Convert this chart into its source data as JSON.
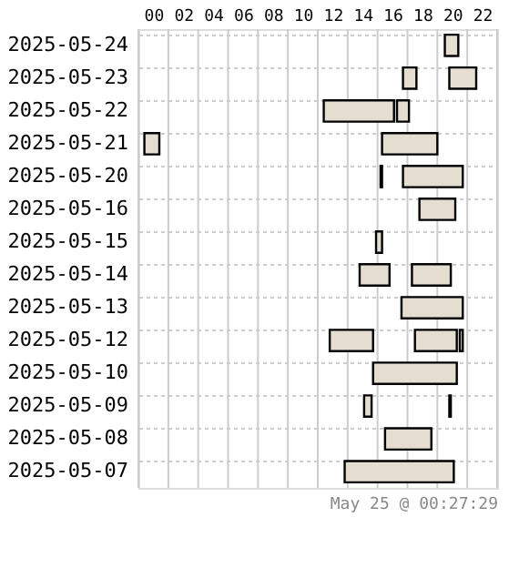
{
  "chart_data": {
    "type": "bar",
    "orientation": "horizontal",
    "categories": [
      "2025-05-24",
      "2025-05-23",
      "2025-05-22",
      "2025-05-21",
      "2025-05-20",
      "2025-05-16",
      "2025-05-15",
      "2025-05-14",
      "2025-05-13",
      "2025-05-12",
      "2025-05-10",
      "2025-05-09",
      "2025-05-08",
      "2025-05-07"
    ],
    "series": [
      {
        "color": "#e4ddd0",
        "base": [
          19.5,
          16.7,
          11.4,
          -0.6,
          15.2,
          17.8,
          14.9,
          13.8,
          16.6,
          11.8,
          14.7,
          14.1,
          15.5,
          12.8
        ],
        "values": [
          0.9,
          0.9,
          4.7,
          1.0,
          0.1,
          2.4,
          0.4,
          2.0,
          4.1,
          2.9,
          5.6,
          0.5,
          3.1,
          7.3
        ]
      },
      {
        "color": "#e4ddd0",
        "base": [
          null,
          19.8,
          16.3,
          15.3,
          16.7,
          null,
          null,
          17.3,
          null,
          17.5,
          null,
          19.8,
          null,
          null
        ],
        "values": [
          null,
          1.8,
          0.8,
          3.7,
          4.0,
          null,
          null,
          2.6,
          null,
          2.8,
          null,
          0.1,
          null,
          null
        ]
      },
      {
        "color": "#e4ddd0",
        "base": [
          null,
          null,
          null,
          null,
          null,
          null,
          null,
          null,
          null,
          20.5,
          null,
          null,
          null,
          null
        ],
        "values": [
          null,
          null,
          null,
          null,
          null,
          null,
          null,
          null,
          null,
          0.2,
          null,
          null,
          null,
          null
        ]
      }
    ],
    "xlim": [
      -1,
      23
    ],
    "xticks": [
      {
        "value": -1,
        "label": null
      },
      {
        "value": 0,
        "label": "00"
      },
      {
        "value": 1,
        "label": null
      },
      {
        "value": 2,
        "label": "02"
      },
      {
        "value": 3,
        "label": null
      },
      {
        "value": 4,
        "label": "04"
      },
      {
        "value": 5,
        "label": null
      },
      {
        "value": 6,
        "label": "06"
      },
      {
        "value": 7,
        "label": null
      },
      {
        "value": 8,
        "label": "08"
      },
      {
        "value": 9,
        "label": null
      },
      {
        "value": 10,
        "label": "10"
      },
      {
        "value": 11,
        "label": null
      },
      {
        "value": 12,
        "label": "12"
      },
      {
        "value": 13,
        "label": null
      },
      {
        "value": 14,
        "label": "14"
      },
      {
        "value": 15,
        "label": null
      },
      {
        "value": 16,
        "label": "16"
      },
      {
        "value": 17,
        "label": null
      },
      {
        "value": 18,
        "label": "18"
      },
      {
        "value": 19,
        "label": null
      },
      {
        "value": 20,
        "label": "20"
      },
      {
        "value": 21,
        "label": null
      },
      {
        "value": 22,
        "label": "22"
      },
      {
        "value": 23,
        "label": null
      }
    ],
    "grid": true,
    "annotations": [
      "May 25 @ 00:27:29"
    ]
  }
}
